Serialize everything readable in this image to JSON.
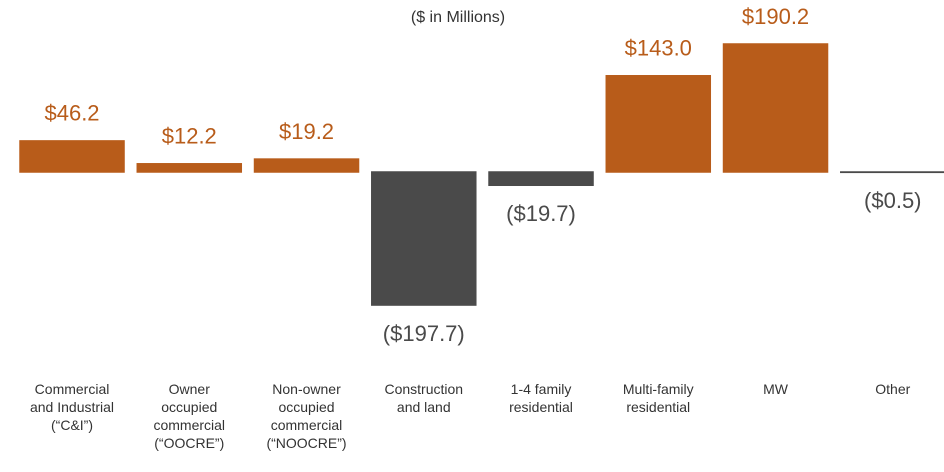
{
  "chart_data": {
    "type": "bar",
    "subtitle": "($ in Millions)",
    "categories": [
      "Commercial\nand Industrial\n(“C&I”)",
      "Owner\noccupied\ncommercial\n(“OOCRE”)",
      "Non-owner\noccupied\ncommercial\n(“NOOCRE”)",
      "Construction\nand land",
      "1-4 family\nresidential",
      "Multi-family\nresidential",
      "MW",
      "Other"
    ],
    "values": [
      46.2,
      12.2,
      19.2,
      -197.7,
      -19.7,
      143.0,
      190.2,
      -0.5
    ],
    "value_labels": [
      "$46.2",
      "$12.2",
      "$19.2",
      "($197.7)",
      "($19.7)",
      "$143.0",
      "$190.2",
      "($0.5)"
    ],
    "color": "#b85c1a",
    "negative_color": "#4a4a4a",
    "ylim": [
      -200,
      200
    ]
  }
}
